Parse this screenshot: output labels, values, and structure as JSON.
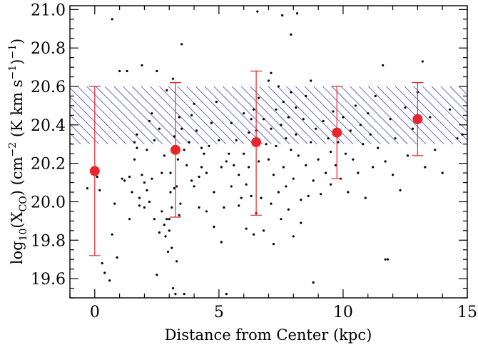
{
  "chart_data": {
    "type": "scatter",
    "xlabel": "Distance from Center (kpc)",
    "ylabel": {
      "prefix": "log",
      "sub": "10",
      "open": "(X",
      "sub2": "CO",
      "mid": ") (cm",
      "sup": "−2",
      "tail": " (K km s",
      "sup2": "−1",
      "end": ")",
      "sup3": "−1",
      "close": ")"
    },
    "xlim": [
      -1,
      15
    ],
    "ylim": [
      19.5,
      21.02
    ],
    "xticks": [
      0,
      5,
      10,
      15
    ],
    "xtick_labels": [
      "0",
      "5",
      "10",
      "15"
    ],
    "yticks": [
      19.6,
      19.8,
      20.0,
      20.2,
      20.4,
      20.6,
      20.8,
      21.0
    ],
    "ytick_labels": [
      "19.6",
      "19.8",
      "20.0",
      "20.2",
      "20.4",
      "20.6",
      "20.8",
      "21.0"
    ],
    "grid": false,
    "colors": {
      "band_hatch": "#2b2bb0",
      "binned": "#e8262d",
      "points": "#000000"
    },
    "band": {
      "y_low": 20.3,
      "y_high": 20.6,
      "style": "hatched"
    },
    "binned": [
      {
        "x": 0.0,
        "y": 20.16,
        "y_low": 19.72,
        "y_high": 20.6
      },
      {
        "x": 3.25,
        "y": 20.27,
        "y_low": 19.92,
        "y_high": 20.62
      },
      {
        "x": 6.5,
        "y": 20.31,
        "y_low": 19.93,
        "y_high": 20.68
      },
      {
        "x": 9.75,
        "y": 20.36,
        "y_low": 20.12,
        "y_high": 20.6
      },
      {
        "x": 13.0,
        "y": 20.43,
        "y_low": 20.24,
        "y_high": 20.62
      }
    ],
    "points": [
      [
        -0.3,
        20.07
      ],
      [
        0.1,
        20.13
      ],
      [
        0.2,
        20.06
      ],
      [
        0.3,
        19.68
      ],
      [
        0.4,
        19.63
      ],
      [
        0.6,
        19.59
      ],
      [
        0.7,
        19.83
      ],
      [
        0.8,
        19.99
      ],
      [
        0.9,
        19.71
      ],
      [
        1.0,
        20.68
      ],
      [
        1.1,
        20.12
      ],
      [
        1.2,
        20.11
      ],
      [
        1.3,
        20.68
      ],
      [
        1.4,
        19.91
      ],
      [
        1.4,
        20.13
      ],
      [
        1.5,
        20.05
      ],
      [
        1.6,
        20.22
      ],
      [
        1.6,
        20.31
      ],
      [
        1.7,
        20.35
      ],
      [
        1.7,
        20.28
      ],
      [
        1.8,
        20.02
      ],
      [
        1.8,
        19.98
      ],
      [
        1.9,
        20.14
      ],
      [
        1.9,
        20.71
      ],
      [
        2.0,
        19.97
      ],
      [
        2.0,
        20.1
      ],
      [
        2.1,
        20.27
      ],
      [
        2.1,
        20.06
      ],
      [
        2.2,
        20.42
      ],
      [
        2.2,
        20.0
      ],
      [
        2.3,
        20.46
      ],
      [
        2.3,
        20.12
      ],
      [
        2.4,
        19.91
      ],
      [
        2.4,
        20.32
      ],
      [
        2.5,
        20.68
      ],
      [
        2.5,
        19.62
      ],
      [
        2.6,
        20.38
      ],
      [
        2.6,
        19.84
      ],
      [
        2.7,
        19.95
      ],
      [
        2.7,
        20.15
      ],
      [
        2.8,
        20.24
      ],
      [
        2.8,
        19.88
      ],
      [
        2.85,
        19.82
      ],
      [
        2.9,
        19.91
      ],
      [
        2.9,
        20.58
      ],
      [
        2.95,
        19.74
      ],
      [
        3.0,
        19.85
      ],
      [
        3.0,
        19.91
      ],
      [
        3.05,
        20.05
      ],
      [
        3.05,
        20.15
      ],
      [
        3.1,
        19.97
      ],
      [
        3.1,
        19.76
      ],
      [
        3.15,
        20.64
      ],
      [
        3.15,
        19.55
      ],
      [
        3.2,
        20.07
      ],
      [
        3.2,
        20.34
      ],
      [
        3.25,
        19.52
      ],
      [
        3.3,
        19.69
      ],
      [
        3.3,
        20.08
      ],
      [
        3.35,
        20.22
      ],
      [
        3.4,
        20.44
      ],
      [
        3.4,
        19.93
      ],
      [
        3.45,
        19.99
      ],
      [
        3.5,
        20.82
      ],
      [
        3.5,
        20.38
      ],
      [
        3.6,
        20.27
      ],
      [
        3.6,
        19.52
      ],
      [
        3.7,
        20.19
      ],
      [
        3.8,
        20.31
      ],
      [
        3.9,
        20.45
      ],
      [
        3.9,
        20.11
      ],
      [
        4.0,
        20.08
      ],
      [
        4.0,
        20.51
      ],
      [
        4.1,
        20.37
      ],
      [
        4.2,
        20.13
      ],
      [
        4.2,
        19.97
      ],
      [
        4.3,
        20.18
      ],
      [
        4.3,
        20.28
      ],
      [
        4.4,
        20.25
      ],
      [
        4.5,
        19.95
      ],
      [
        4.5,
        20.15
      ],
      [
        4.6,
        20.29
      ],
      [
        4.7,
        20.41
      ],
      [
        4.8,
        20.05
      ],
      [
        4.8,
        19.87
      ],
      [
        4.9,
        20.52
      ],
      [
        5.0,
        20.32
      ],
      [
        5.1,
        20.18
      ],
      [
        5.1,
        19.79
      ],
      [
        5.2,
        19.97
      ],
      [
        5.3,
        20.21
      ],
      [
        5.3,
        19.52
      ],
      [
        5.4,
        20.25
      ],
      [
        5.5,
        20.41
      ],
      [
        5.5,
        20.08
      ],
      [
        5.6,
        20.19
      ],
      [
        5.7,
        20.32
      ],
      [
        5.8,
        20.14
      ],
      [
        5.8,
        19.98
      ],
      [
        5.9,
        20.02
      ],
      [
        6.0,
        20.46
      ],
      [
        6.0,
        20.25
      ],
      [
        6.1,
        20.09
      ],
      [
        6.1,
        19.86
      ],
      [
        6.2,
        20.36
      ],
      [
        6.2,
        20.18
      ],
      [
        6.3,
        20.43
      ],
      [
        6.3,
        20.03
      ],
      [
        6.4,
        20.48
      ],
      [
        6.4,
        19.83
      ],
      [
        6.5,
        20.37
      ],
      [
        6.5,
        19.94
      ],
      [
        6.6,
        20.54
      ],
      [
        6.6,
        20.21
      ],
      [
        6.7,
        20.02
      ],
      [
        6.8,
        20.43
      ],
      [
        6.8,
        19.85
      ],
      [
        6.9,
        20.3
      ],
      [
        7.0,
        20.63
      ],
      [
        7.0,
        20.22
      ],
      [
        7.1,
        19.99
      ],
      [
        7.1,
        20.38
      ],
      [
        7.2,
        20.14
      ],
      [
        7.2,
        19.78
      ],
      [
        7.3,
        20.48
      ],
      [
        7.3,
        20.29
      ],
      [
        7.4,
        20.05
      ],
      [
        7.5,
        20.4
      ],
      [
        7.5,
        19.91
      ],
      [
        7.6,
        20.18
      ],
      [
        7.6,
        20.52
      ],
      [
        7.7,
        20.33
      ],
      [
        7.7,
        20.08
      ],
      [
        7.8,
        20.44
      ],
      [
        7.8,
        19.96
      ],
      [
        7.9,
        20.27
      ],
      [
        7.9,
        20.57
      ],
      [
        8.0,
        20.12
      ],
      [
        8.0,
        19.82
      ],
      [
        8.1,
        20.35
      ],
      [
        8.1,
        20.49
      ],
      [
        8.2,
        20.24
      ],
      [
        8.3,
        20.01
      ],
      [
        8.3,
        19.89
      ],
      [
        8.4,
        20.43
      ],
      [
        8.5,
        20.19
      ],
      [
        8.5,
        20.55
      ],
      [
        8.6,
        20.03
      ],
      [
        8.7,
        20.31
      ],
      [
        8.8,
        20.11
      ],
      [
        8.8,
        19.58
      ],
      [
        8.9,
        20.38
      ],
      [
        9.0,
        20.22
      ],
      [
        9.1,
        20.04
      ],
      [
        9.2,
        20.42
      ],
      [
        9.3,
        20.15
      ],
      [
        9.4,
        20.33
      ],
      [
        9.5,
        20.26
      ],
      [
        9.5,
        20.09
      ],
      [
        9.6,
        20.47
      ],
      [
        9.7,
        20.19
      ],
      [
        9.8,
        20.31
      ],
      [
        9.9,
        20.12
      ],
      [
        10.0,
        20.44
      ],
      [
        10.1,
        20.25
      ],
      [
        10.2,
        20.05
      ],
      [
        10.3,
        20.37
      ],
      [
        10.4,
        20.22
      ],
      [
        10.5,
        20.5
      ],
      [
        10.6,
        20.15
      ],
      [
        10.7,
        20.4
      ],
      [
        10.8,
        20.3
      ],
      [
        10.9,
        20.02
      ],
      [
        11.0,
        20.46
      ],
      [
        11.1,
        20.35
      ],
      [
        11.2,
        20.18
      ],
      [
        11.3,
        20.55
      ],
      [
        11.4,
        20.28
      ],
      [
        11.6,
        20.71
      ],
      [
        11.7,
        20.21
      ],
      [
        11.8,
        19.7
      ],
      [
        11.9,
        20.43
      ],
      [
        12.0,
        20.14
      ],
      [
        12.1,
        20.33
      ],
      [
        12.3,
        20.06
      ],
      [
        12.5,
        20.49
      ],
      [
        12.6,
        20.24
      ],
      [
        12.8,
        20.38
      ],
      [
        13.0,
        20.57
      ],
      [
        13.2,
        20.73
      ],
      [
        13.3,
        20.18
      ],
      [
        13.5,
        20.44
      ],
      [
        13.7,
        20.27
      ],
      [
        14.0,
        20.15
      ],
      [
        14.3,
        20.48
      ],
      [
        14.6,
        20.33
      ],
      [
        14.8,
        20.35
      ],
      [
        0.7,
        20.95
      ],
      [
        6.55,
        20.99
      ],
      [
        7.55,
        20.97
      ],
      [
        7.9,
        20.87
      ],
      [
        8.15,
        20.98
      ],
      [
        7.1,
        20.67
      ],
      [
        7.4,
        20.6
      ],
      [
        8.7,
        20.63
      ],
      [
        11.7,
        19.7
      ]
    ]
  }
}
